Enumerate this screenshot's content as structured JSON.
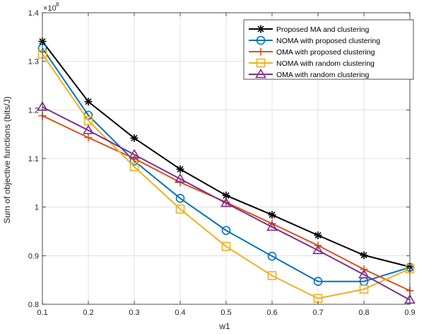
{
  "chart_data": {
    "type": "line",
    "xlabel": "w1",
    "ylabel": "Sum of objective functions (bits/J)",
    "y_exponent_label": "×10",
    "y_exponent_power": "8",
    "xlim": [
      0.1,
      0.9
    ],
    "ylim": [
      0.8,
      1.4
    ],
    "x_ticks": [
      "0.1",
      "0.2",
      "0.3",
      "0.4",
      "0.5",
      "0.6",
      "0.7",
      "0.8",
      "0.9"
    ],
    "y_ticks": [
      "0.8",
      "0.9",
      "1",
      "1.1",
      "1.2",
      "1.3",
      "1.4"
    ],
    "grid": true,
    "legend_position": "top-right",
    "x": [
      0.1,
      0.2,
      0.3,
      0.4,
      0.5,
      0.6,
      0.7,
      0.8,
      0.9
    ],
    "series": [
      {
        "name": "Proposed MA and clustering",
        "color": "#000000",
        "marker": "asterisk",
        "values": [
          1.341,
          1.217,
          1.142,
          1.078,
          1.024,
          0.984,
          0.942,
          0.901,
          0.877
        ]
      },
      {
        "name": "NOMA with proposed clustering",
        "color": "#0072BD",
        "marker": "circle",
        "values": [
          1.327,
          1.189,
          1.095,
          1.018,
          0.952,
          0.899,
          0.847,
          0.847,
          0.876
        ]
      },
      {
        "name": "OMA with proposed clustering",
        "color": "#D95319",
        "marker": "plus",
        "values": [
          1.188,
          1.143,
          1.1,
          1.051,
          1.01,
          0.966,
          0.921,
          0.872,
          0.828
        ]
      },
      {
        "name": "NOMA with random clustering",
        "color": "#EDB120",
        "marker": "square",
        "values": [
          1.315,
          1.178,
          1.083,
          0.996,
          0.919,
          0.859,
          0.812,
          0.831,
          0.873
        ]
      },
      {
        "name": "OMA with random clustering",
        "color": "#7E2F8E",
        "marker": "triangle",
        "values": [
          1.206,
          1.158,
          1.108,
          1.058,
          1.008,
          0.959,
          0.911,
          0.861,
          0.809
        ]
      }
    ]
  }
}
